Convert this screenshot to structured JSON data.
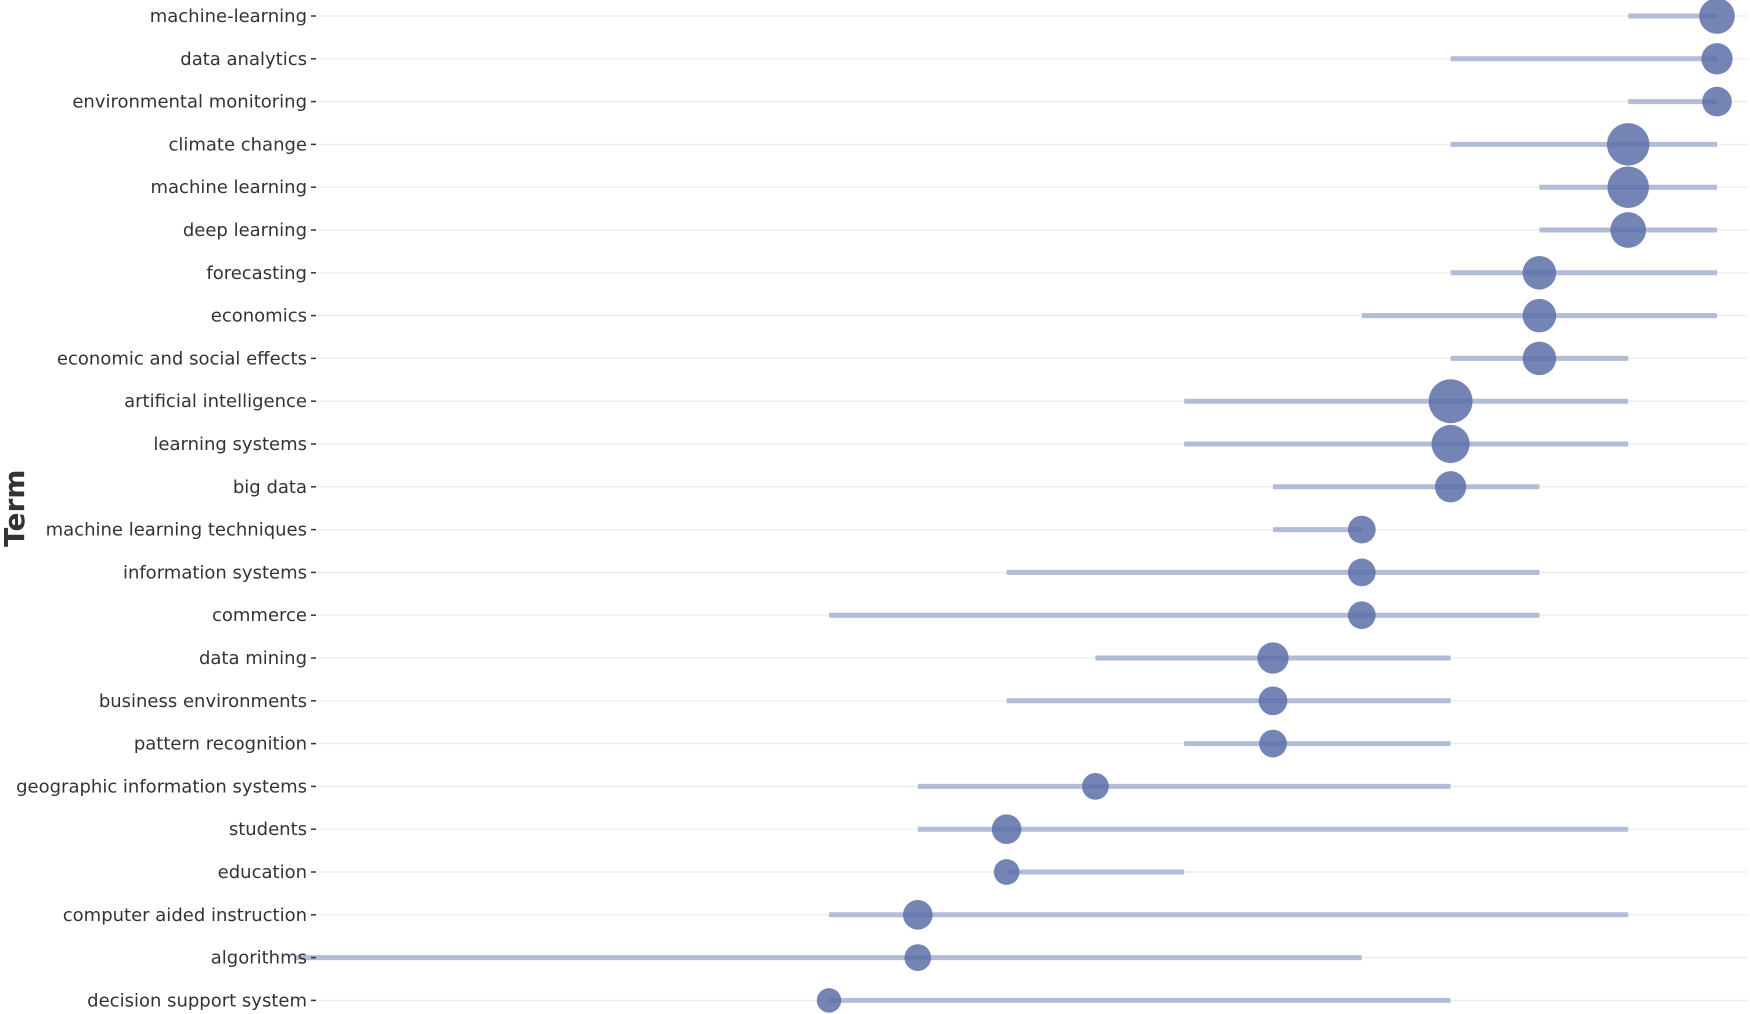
{
  "chart_data": {
    "type": "scatter",
    "title": "",
    "xlabel": "",
    "ylabel": "Term",
    "grid": true,
    "legend": "none",
    "x_range": [
      1999,
      2018
    ],
    "colors": {
      "point": "#5a6fa8",
      "range_line": "#b3bcd7",
      "grid": "#ebebeb",
      "tick": "#333333"
    },
    "series": [
      {
        "term": "machine-learning",
        "year_q1": 2016,
        "year_median": 2017,
        "year_q3": 2017,
        "frequency": 36
      },
      {
        "term": "data analytics",
        "year_q1": 2014,
        "year_median": 2017,
        "year_q3": 2017,
        "frequency": 24
      },
      {
        "term": "environmental monitoring",
        "year_q1": 2016,
        "year_median": 2017,
        "year_q3": 2017,
        "frequency": 20
      },
      {
        "term": "climate change",
        "year_q1": 2014,
        "year_median": 2016,
        "year_q3": 2017,
        "frequency": 60
      },
      {
        "term": "machine learning",
        "year_q1": 2015,
        "year_median": 2016,
        "year_q3": 2017,
        "frequency": 56
      },
      {
        "term": "deep learning",
        "year_q1": 2015,
        "year_median": 2016,
        "year_q3": 2017,
        "frequency": 36
      },
      {
        "term": "forecasting",
        "year_q1": 2014,
        "year_median": 2015,
        "year_q3": 2017,
        "frequency": 30
      },
      {
        "term": "economics",
        "year_q1": 2013,
        "year_median": 2015,
        "year_q3": 2017,
        "frequency": 30
      },
      {
        "term": "economic and social effects",
        "year_q1": 2014,
        "year_median": 2015,
        "year_q3": 2016,
        "frequency": 30
      },
      {
        "term": "artificial intelligence",
        "year_q1": 2011,
        "year_median": 2014,
        "year_q3": 2016,
        "frequency": 66
      },
      {
        "term": "learning systems",
        "year_q1": 2011,
        "year_median": 2014,
        "year_q3": 2016,
        "frequency": 44
      },
      {
        "term": "big data",
        "year_q1": 2012,
        "year_median": 2014,
        "year_q3": 2015,
        "frequency": 24
      },
      {
        "term": "machine learning techniques",
        "year_q1": 2012,
        "year_median": 2013,
        "year_q3": 2013,
        "frequency": 16
      },
      {
        "term": "information systems",
        "year_q1": 2009,
        "year_median": 2013,
        "year_q3": 2015,
        "frequency": 16
      },
      {
        "term": "commerce",
        "year_q1": 2007,
        "year_median": 2013,
        "year_q3": 2015,
        "frequency": 16
      },
      {
        "term": "data mining",
        "year_q1": 2010,
        "year_median": 2012,
        "year_q3": 2014,
        "frequency": 24
      },
      {
        "term": "business environments",
        "year_q1": 2009,
        "year_median": 2012,
        "year_q3": 2014,
        "frequency": 18
      },
      {
        "term": "pattern recognition",
        "year_q1": 2011,
        "year_median": 2012,
        "year_q3": 2014,
        "frequency": 16
      },
      {
        "term": "geographic information systems",
        "year_q1": 2008,
        "year_median": 2010,
        "year_q3": 2014,
        "frequency": 14
      },
      {
        "term": "students",
        "year_q1": 2008,
        "year_median": 2009,
        "year_q3": 2016,
        "frequency": 20
      },
      {
        "term": "education",
        "year_q1": 2009,
        "year_median": 2009,
        "year_q3": 2011,
        "frequency": 12
      },
      {
        "term": "computer aided instruction",
        "year_q1": 2007,
        "year_median": 2008,
        "year_q3": 2016,
        "frequency": 20
      },
      {
        "term": "algorithms",
        "year_q1": 2001,
        "year_median": 2008,
        "year_q3": 2013,
        "frequency": 14
      },
      {
        "term": "decision support system",
        "year_q1": 2007,
        "year_median": 2007,
        "year_q3": 2014,
        "frequency": 10
      }
    ]
  }
}
